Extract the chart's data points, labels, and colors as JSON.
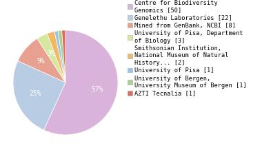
{
  "labels": [
    "Centre for Biodiversity\nGenomics [50]",
    "Genelethu Laboratories [22]",
    "Mined from GenBank, NCBI [8]",
    "University of Pisa, Department\nof Biology [3]",
    "Smithsonian Institution,\nNational Museum of Natural\nHistory... [2]",
    "University of Pisa [1]",
    "University of Bergen,\nUniversity Museum of Bergen [1]",
    "AZTI Tecnalia [1]"
  ],
  "values": [
    50,
    22,
    8,
    3,
    2,
    1,
    1,
    1
  ],
  "colors": [
    "#d9b3d9",
    "#b8cce4",
    "#e8a090",
    "#d6e8a0",
    "#f5b862",
    "#9dc3e6",
    "#a9d18e",
    "#e06b5b"
  ],
  "font_size": 7,
  "legend_font_size": 6.2,
  "background_color": "#ffffff"
}
